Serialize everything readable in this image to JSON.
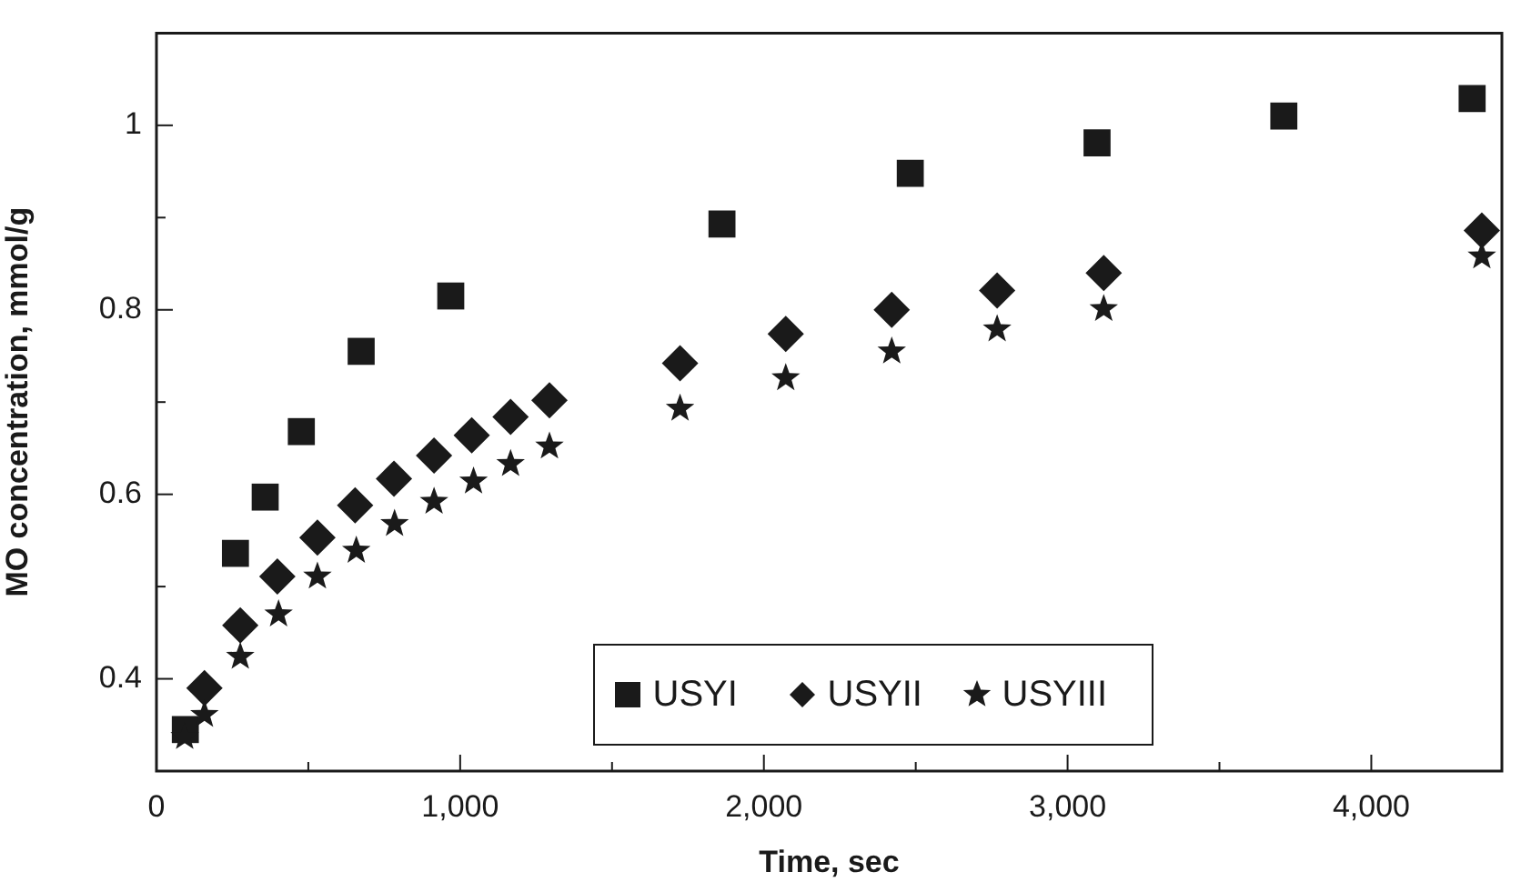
{
  "chart_data": {
    "type": "scatter",
    "xlabel": "Time, sec",
    "ylabel": "MO concentration, mmol/g",
    "xlim": [
      0,
      4430
    ],
    "ylim": [
      0.3,
      1.1
    ],
    "xticks": [
      0,
      {
        "value": 500,
        "label": null
      },
      {
        "value": 1000,
        "label": "1,000"
      },
      {
        "value": 1500,
        "label": null
      },
      {
        "value": 2000,
        "label": "2,000"
      },
      {
        "value": 2500,
        "label": null
      },
      {
        "value": 3000,
        "label": "3,000"
      },
      {
        "value": 3500,
        "label": null
      },
      {
        "value": 4000,
        "label": "4,000"
      }
    ],
    "yticks": [
      0.4,
      {
        "value": 0.5,
        "label": null
      },
      0.6,
      {
        "value": 0.7,
        "label": null
      },
      0.8,
      {
        "value": 0.9,
        "label": null
      },
      1
    ],
    "grid": false,
    "legend": "bottom",
    "series": [
      {
        "name": "USYI",
        "color": "#1a1a1a",
        "marker": "square",
        "x": [
          95,
          260,
          358,
          477,
          674,
          969,
          1862,
          2482,
          3097,
          3712,
          4332
        ],
        "values": [
          0.345,
          0.536,
          0.597,
          0.668,
          0.755,
          0.815,
          0.893,
          0.948,
          0.981,
          1.01,
          1.029
        ]
      },
      {
        "name": "USYII",
        "color": "#1a1a1a",
        "marker": "diamond",
        "x": [
          158,
          276,
          398,
          530,
          654,
          782,
          914,
          1038,
          1166,
          1294,
          1724,
          2072,
          2421,
          2768,
          3119,
          4364
        ],
        "values": [
          0.39,
          0.458,
          0.511,
          0.553,
          0.588,
          0.617,
          0.642,
          0.664,
          0.684,
          0.702,
          0.742,
          0.774,
          0.8,
          0.821,
          0.84,
          0.886
        ]
      },
      {
        "name": "USYIII",
        "color": "#1a1a1a",
        "marker": "star",
        "x": [
          93,
          158,
          276,
          402,
          530,
          658,
          784,
          914,
          1044,
          1166,
          1294,
          1724,
          2072,
          2421,
          2768,
          3119,
          4364
        ],
        "values": [
          0.337,
          0.361,
          0.424,
          0.47,
          0.511,
          0.539,
          0.568,
          0.592,
          0.614,
          0.633,
          0.652,
          0.693,
          0.726,
          0.755,
          0.779,
          0.801,
          0.858
        ]
      }
    ]
  }
}
